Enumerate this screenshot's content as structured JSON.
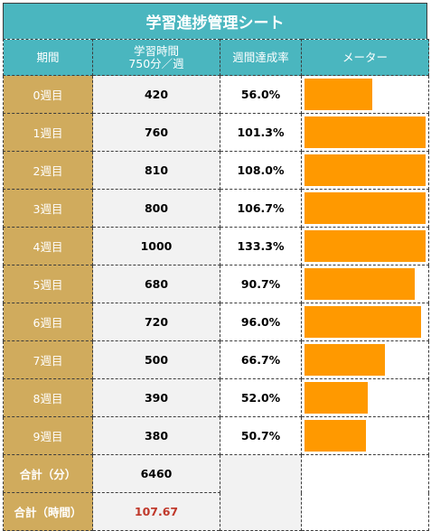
{
  "title": "学習進捗管理シート",
  "headers": {
    "period": "期間",
    "study_time_line1": "学習時間",
    "study_time_line2": "750分／週",
    "weekly_rate": "週間達成率",
    "meter": "メーター"
  },
  "rows": [
    {
      "week": "0週目",
      "minutes": "420",
      "rate": "56.0%",
      "meter_fraction": 0.56
    },
    {
      "week": "1週目",
      "minutes": "760",
      "rate": "101.3%",
      "meter_fraction": 1.0
    },
    {
      "week": "2週目",
      "minutes": "810",
      "rate": "108.0%",
      "meter_fraction": 1.0
    },
    {
      "week": "3週目",
      "minutes": "800",
      "rate": "106.7%",
      "meter_fraction": 1.0
    },
    {
      "week": "4週目",
      "minutes": "1000",
      "rate": "133.3%",
      "meter_fraction": 1.0
    },
    {
      "week": "5週目",
      "minutes": "680",
      "rate": "90.7%",
      "meter_fraction": 0.907
    },
    {
      "week": "6週目",
      "minutes": "720",
      "rate": "96.0%",
      "meter_fraction": 0.96
    },
    {
      "week": "7週目",
      "minutes": "500",
      "rate": "66.7%",
      "meter_fraction": 0.667
    },
    {
      "week": "8週目",
      "minutes": "390",
      "rate": "52.0%",
      "meter_fraction": 0.52
    },
    {
      "week": "9週目",
      "minutes": "380",
      "rate": "50.7%",
      "meter_fraction": 0.507
    }
  ],
  "totals": {
    "minutes_label": "合計（分）",
    "minutes_value": "6460",
    "hours_label": "合計（時間）",
    "hours_value": "107.67"
  },
  "colors": {
    "header": "#4ab6bf",
    "period": "#d0ab5d",
    "bar": "#ff9900",
    "hours_text": "#c0392b"
  }
}
